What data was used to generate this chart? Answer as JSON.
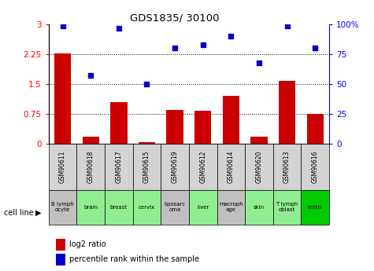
{
  "title": "GDS1835/ 30100",
  "gsm_labels": [
    "GSM90611",
    "GSM90618",
    "GSM90617",
    "GSM90615",
    "GSM90619",
    "GSM90612",
    "GSM90614",
    "GSM90620",
    "GSM90613",
    "GSM90616"
  ],
  "cell_line_labels": [
    "B lymph\nocyte",
    "brain",
    "breast",
    "cervix",
    "liposarc\noma",
    "liver",
    "macroph\nage",
    "skin",
    "T lymph\noblast",
    "testis"
  ],
  "cell_line_colors": [
    "#c0c0c0",
    "#90ee90",
    "#90ee90",
    "#90ee90",
    "#c0c0c0",
    "#90ee90",
    "#c0c0c0",
    "#90ee90",
    "#90ee90",
    "#00cc00"
  ],
  "log2_ratio": [
    2.27,
    0.18,
    1.05,
    0.03,
    0.85,
    0.82,
    1.2,
    0.17,
    1.57,
    0.75
  ],
  "percentile_rank": [
    99,
    57,
    97,
    50,
    80,
    83,
    90,
    68,
    99,
    80
  ],
  "ylim_left": [
    0,
    3.0
  ],
  "ylim_right": [
    0,
    100
  ],
  "yticks_left": [
    0,
    0.75,
    1.5,
    2.25,
    3.0
  ],
  "yticks_right_vals": [
    0,
    25,
    50,
    75,
    100
  ],
  "yticks_right_labels": [
    "0",
    "25",
    "50",
    "75",
    "100%"
  ],
  "bar_color": "#cc0000",
  "scatter_color": "#0000cc",
  "legend_bar_color": "#cc0000",
  "legend_scatter_color": "#0000cc",
  "legend_bar_label": "log2 ratio",
  "legend_scatter_label": "percentile rank within the sample",
  "cell_line_header": "cell line"
}
